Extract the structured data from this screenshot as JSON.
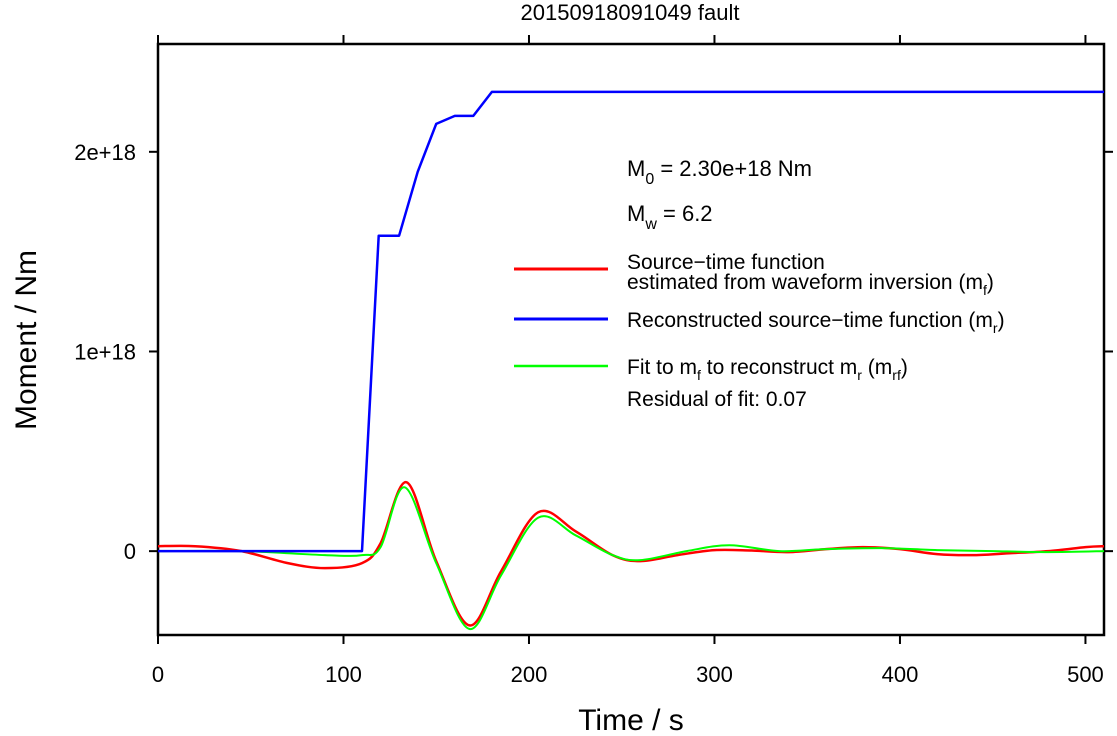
{
  "chart_data": {
    "type": "line",
    "title": "20150918091049 fault",
    "xlabel": "Time / s",
    "ylabel": "Moment / Nm",
    "xlim": [
      0,
      510
    ],
    "ylim": [
      -4.2e+17,
      2.54e+18
    ],
    "xticks": [
      0,
      100,
      200,
      300,
      400,
      500
    ],
    "xtick_labels": [
      "0",
      "100",
      "200",
      "300",
      "400",
      "500"
    ],
    "yticks": [
      0,
      1e+18,
      2e+18
    ],
    "ytick_labels": [
      "0",
      "1e+18",
      "2e+18"
    ],
    "grid": false,
    "legend_position": "right",
    "annotations": {
      "m0_sym": "M",
      "m0_sub": "0",
      "m0_rest": " = 2.30e+18 Nm",
      "mw_sym": "M",
      "mw_sub": "w",
      "mw_rest": " = 6.2",
      "residual": "Residual of fit: 0.07"
    },
    "legend": [
      {
        "color": "#ff0000",
        "line1": "Source−time function",
        "line2_a": "estimated from waveform inversion (m",
        "line2_sub": "f",
        "line2_b": ")"
      },
      {
        "color": "#0000ff",
        "line1_a": "Reconstructed source−time function (m",
        "line1_sub": "r",
        "line1_b": ")"
      },
      {
        "color": "#00ff00",
        "line1_a": "Fit to m",
        "line1_sub1": "f",
        "line1_mid": " to reconstruct m",
        "line1_sub2": "r",
        "line1_mid2": " (m",
        "line1_sub3": "rf",
        "line1_b": ")"
      }
    ],
    "series": [
      {
        "color": "#0000ff",
        "x": [
          0,
          110,
          119,
          130,
          140,
          150,
          160,
          170,
          180,
          510
        ],
        "y": [
          0,
          0,
          1.58e+18,
          1.58e+18,
          1.9e+18,
          2.14e+18,
          2.18e+18,
          2.18e+18,
          2.3e+18,
          2.3e+18
        ]
      },
      {
        "color": "#ff0000",
        "x": [
          0,
          20,
          45,
          70,
          90,
          110,
          120,
          134,
          150,
          168,
          185,
          205,
          225,
          245,
          260,
          280,
          300,
          320,
          340,
          360,
          380,
          400,
          420,
          440,
          460,
          480,
          500,
          510
        ],
        "y": [
          2.5e+16,
          2.5e+16,
          0,
          -6e+16,
          -8.5e+16,
          -6e+16,
          4e+16,
          3.45e+17,
          -5e+16,
          -3.72e+17,
          -1e+17,
          1.95e+17,
          1e+17,
          -2e+16,
          -5e+16,
          -2e+16,
          5000000000000000.0,
          3000000000000000.0,
          -5000000000000000.0,
          1e+16,
          2e+16,
          1e+16,
          -1.5e+16,
          -2e+16,
          -1e+16,
          0,
          2e+16,
          2.5e+16
        ]
      },
      {
        "color": "#00ff00",
        "x": [
          0,
          45,
          90,
          110,
          120,
          133,
          150,
          168,
          185,
          205,
          225,
          245,
          260,
          285,
          308,
          335,
          360,
          390,
          420,
          450,
          480,
          510
        ],
        "y": [
          0,
          0,
          -2e+16,
          -2e+16,
          2e+16,
          3.2e+17,
          -6e+16,
          -3.9e+17,
          -1.2e+17,
          1.68e+17,
          8e+16,
          -2e+16,
          -4.5e+16,
          0,
          3e+16,
          0,
          1e+16,
          1.5e+16,
          5000000000000000.0,
          0,
          -5000000000000000.0,
          0
        ]
      }
    ]
  }
}
